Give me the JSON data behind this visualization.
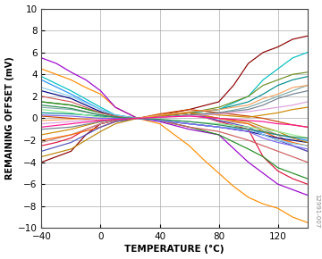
{
  "title": "",
  "xlabel": "TEMPERATURE (°C)",
  "ylabel": "REMAINING OFFSET (mV)",
  "xlim": [
    -40,
    140
  ],
  "ylim": [
    -10,
    10
  ],
  "xticks": [
    -40,
    0,
    40,
    80,
    120
  ],
  "yticks": [
    -10,
    -8,
    -6,
    -4,
    -2,
    0,
    2,
    4,
    6,
    8,
    10
  ],
  "watermark": "12991-007",
  "background_color": "#ffffff",
  "grid_color": "#aaaaaa",
  "lines": [
    {
      "color": "#FF8C00",
      "temps": [
        -40,
        -30,
        -20,
        -10,
        0,
        10,
        25,
        40,
        50,
        60,
        70,
        80,
        90,
        100,
        110,
        120,
        130,
        140
      ],
      "vals": [
        4.5,
        4.0,
        3.5,
        2.8,
        2.2,
        1.0,
        0,
        -0.5,
        -1.5,
        -2.5,
        -3.8,
        -5.0,
        -6.2,
        -7.2,
        -7.8,
        -8.2,
        -9.0,
        -9.5
      ]
    },
    {
      "color": "#8B0000",
      "temps": [
        -40,
        -30,
        -20,
        -10,
        0,
        10,
        25,
        40,
        60,
        80,
        90,
        100,
        110,
        120,
        130,
        140
      ],
      "vals": [
        -4.0,
        -3.5,
        -3.0,
        -1.5,
        -0.5,
        -0.2,
        0,
        0.3,
        0.8,
        1.5,
        3.0,
        5.0,
        6.0,
        6.5,
        7.2,
        7.5
      ]
    },
    {
      "color": "#00BFBF",
      "temps": [
        -40,
        -20,
        0,
        10,
        25,
        40,
        60,
        80,
        100,
        110,
        120,
        130,
        140
      ],
      "vals": [
        3.8,
        2.5,
        1.0,
        0.3,
        0,
        0.2,
        0.5,
        0.8,
        2.0,
        3.5,
        4.5,
        5.5,
        6.0
      ]
    },
    {
      "color": "#1E90FF",
      "temps": [
        -40,
        -20,
        0,
        10,
        25,
        40,
        60,
        80,
        100,
        110,
        120,
        130,
        140
      ],
      "vals": [
        3.5,
        2.2,
        0.8,
        0.3,
        0,
        -0.2,
        -0.5,
        -0.8,
        -1.0,
        -1.3,
        -1.5,
        -1.8,
        -2.0
      ]
    },
    {
      "color": "#9900CC",
      "temps": [
        -40,
        -30,
        -20,
        -10,
        0,
        10,
        25,
        40,
        60,
        80,
        100,
        110,
        120,
        130,
        140
      ],
      "vals": [
        5.5,
        5.0,
        4.2,
        3.5,
        2.5,
        1.0,
        0,
        -0.3,
        -1.0,
        -1.5,
        -4.0,
        -5.0,
        -6.0,
        -6.5,
        -7.0
      ]
    },
    {
      "color": "#6B8E23",
      "temps": [
        -40,
        -20,
        0,
        10,
        25,
        40,
        60,
        80,
        100,
        110,
        120,
        130,
        140
      ],
      "vals": [
        1.5,
        1.2,
        0.5,
        0.2,
        0,
        0.2,
        0.5,
        1.0,
        2.0,
        3.0,
        3.5,
        4.0,
        4.2
      ]
    },
    {
      "color": "#DC143C",
      "temps": [
        -40,
        -30,
        -20,
        -10,
        0,
        10,
        25,
        40,
        60,
        80,
        100,
        110,
        120,
        130,
        140
      ],
      "vals": [
        -2.5,
        -2.2,
        -1.8,
        -1.0,
        -0.5,
        -0.2,
        0,
        0.2,
        0.5,
        -0.3,
        -1.0,
        -3.5,
        -4.8,
        -5.5,
        -6.0
      ]
    },
    {
      "color": "#BC8F8F",
      "temps": [
        -40,
        -20,
        0,
        10,
        25,
        40,
        60,
        80,
        100,
        110,
        120,
        130,
        140
      ],
      "vals": [
        -2.2,
        -1.5,
        -0.5,
        -0.2,
        0,
        0.1,
        0.3,
        -0.2,
        -0.5,
        -1.0,
        -1.5,
        -2.5,
        -3.0
      ]
    },
    {
      "color": "#008B8B",
      "temps": [
        -40,
        -20,
        0,
        10,
        25,
        40,
        60,
        80,
        100,
        110,
        120,
        130,
        140
      ],
      "vals": [
        0.5,
        0.4,
        0.2,
        0.1,
        0,
        0.2,
        0.5,
        0.8,
        1.5,
        2.2,
        3.0,
        3.5,
        3.8
      ]
    },
    {
      "color": "#FF6600",
      "temps": [
        -40,
        -20,
        0,
        10,
        25,
        40,
        60,
        80,
        100,
        110,
        120,
        130,
        140
      ],
      "vals": [
        -2.0,
        -1.5,
        -0.8,
        -0.3,
        0,
        0.3,
        0.5,
        0.0,
        -0.5,
        -1.2,
        -1.8,
        -2.2,
        -2.5
      ]
    },
    {
      "color": "#000080",
      "temps": [
        -40,
        -20,
        0,
        10,
        25,
        40,
        60,
        80,
        100,
        110,
        120,
        130,
        140
      ],
      "vals": [
        2.5,
        1.8,
        0.6,
        0.2,
        0,
        -0.2,
        -0.5,
        -0.8,
        -1.2,
        -1.5,
        -1.8,
        -2.0,
        -2.2
      ]
    },
    {
      "color": "#7FAAAA",
      "temps": [
        -40,
        -20,
        0,
        10,
        25,
        40,
        60,
        80,
        100,
        110,
        120,
        130,
        140
      ],
      "vals": [
        1.0,
        0.8,
        0.3,
        0.1,
        0,
        0.1,
        0.3,
        0.5,
        1.0,
        1.5,
        2.0,
        2.5,
        3.0
      ]
    },
    {
      "color": "#CC4400",
      "temps": [
        -40,
        -20,
        0,
        10,
        25,
        40,
        60,
        80,
        100,
        110,
        120,
        130,
        140
      ],
      "vals": [
        0.2,
        0.0,
        -0.2,
        -0.1,
        0,
        0.4,
        0.8,
        0.5,
        0.2,
        0.0,
        -0.3,
        -0.6,
        -0.8
      ]
    },
    {
      "color": "#5050C0",
      "temps": [
        -40,
        -20,
        0,
        10,
        25,
        40,
        60,
        80,
        100,
        110,
        120,
        130,
        140
      ],
      "vals": [
        -3.0,
        -2.2,
        -0.8,
        -0.3,
        0,
        0.2,
        0.5,
        -0.2,
        -0.8,
        -1.5,
        -2.0,
        -2.5,
        -3.0
      ]
    },
    {
      "color": "#B8860B",
      "temps": [
        -40,
        -20,
        0,
        10,
        25,
        40,
        60,
        80,
        100,
        110,
        120,
        130,
        140
      ],
      "vals": [
        -3.5,
        -2.8,
        -1.2,
        -0.5,
        0,
        0.3,
        0.5,
        0.0,
        -0.3,
        -0.8,
        -1.2,
        -1.8,
        -2.2
      ]
    },
    {
      "color": "#228B22",
      "temps": [
        -40,
        -20,
        0,
        10,
        25,
        40,
        60,
        80,
        100,
        110,
        120,
        130,
        140
      ],
      "vals": [
        1.5,
        1.2,
        0.5,
        0.2,
        0,
        -0.2,
        -0.8,
        -1.5,
        -2.8,
        -3.5,
        -4.5,
        -5.0,
        -5.5
      ]
    },
    {
      "color": "#CC8800",
      "temps": [
        -40,
        -20,
        0,
        10,
        25,
        40,
        60,
        80,
        100,
        110,
        120,
        130,
        140
      ],
      "vals": [
        -1.5,
        -1.0,
        -0.3,
        -0.1,
        0,
        0.2,
        0.5,
        0.3,
        0.1,
        0.3,
        0.5,
        0.8,
        1.0
      ]
    },
    {
      "color": "#CD5C5C",
      "temps": [
        -40,
        -20,
        0,
        10,
        25,
        40,
        60,
        80,
        100,
        110,
        120,
        130,
        140
      ],
      "vals": [
        2.0,
        1.5,
        0.5,
        0.2,
        0,
        -0.2,
        -0.8,
        -1.2,
        -2.0,
        -2.5,
        -3.0,
        -3.5,
        -4.0
      ]
    },
    {
      "color": "#708090",
      "temps": [
        -40,
        -20,
        0,
        10,
        25,
        40,
        60,
        80,
        100,
        110,
        120,
        130,
        140
      ],
      "vals": [
        -1.0,
        -0.8,
        -0.3,
        -0.1,
        0,
        0.1,
        0.3,
        0.5,
        0.8,
        1.2,
        1.8,
        2.2,
        2.5
      ]
    },
    {
      "color": "#90EE90",
      "temps": [
        -40,
        -20,
        0,
        10,
        25,
        40,
        60,
        80,
        100,
        110,
        120,
        130,
        140
      ],
      "vals": [
        0.8,
        0.5,
        0.1,
        0.0,
        0,
        -0.1,
        -0.3,
        -0.5,
        -0.8,
        -1.0,
        -1.2,
        -1.5,
        -1.8
      ]
    },
    {
      "color": "#DDA0DD",
      "temps": [
        -40,
        -20,
        0,
        10,
        25,
        40,
        60,
        80,
        100,
        110,
        120,
        130,
        140
      ],
      "vals": [
        -0.5,
        -0.3,
        -0.1,
        0.0,
        0,
        0.1,
        0.2,
        0.4,
        0.6,
        0.8,
        1.0,
        1.2,
        1.5
      ]
    },
    {
      "color": "#87CEEB",
      "temps": [
        -40,
        -20,
        0,
        10,
        25,
        40,
        60,
        80,
        100,
        110,
        120,
        130,
        140
      ],
      "vals": [
        2.8,
        2.0,
        0.8,
        0.3,
        0,
        -0.2,
        -0.5,
        -0.8,
        -1.0,
        -1.5,
        -2.0,
        -2.3,
        -2.5
      ]
    },
    {
      "color": "#F4A460",
      "temps": [
        -40,
        -20,
        0,
        10,
        25,
        40,
        60,
        80,
        100,
        110,
        120,
        130,
        140
      ],
      "vals": [
        -0.2,
        -0.1,
        0.0,
        0.0,
        0,
        0.3,
        0.6,
        0.8,
        1.2,
        1.8,
        2.2,
        2.8,
        3.0
      ]
    },
    {
      "color": "#7B68EE",
      "temps": [
        -40,
        -20,
        0,
        10,
        25,
        40,
        60,
        80,
        100,
        110,
        120,
        130,
        140
      ],
      "vals": [
        0.3,
        0.2,
        0.0,
        0.0,
        0,
        -0.2,
        -0.5,
        -0.8,
        -1.2,
        -1.8,
        -2.2,
        -2.5,
        -2.8
      ]
    },
    {
      "color": "#2E8B57",
      "temps": [
        -40,
        -20,
        0,
        10,
        25,
        40,
        60,
        80,
        100,
        110,
        120,
        130,
        140
      ],
      "vals": [
        1.2,
        0.9,
        0.3,
        0.1,
        0,
        -0.1,
        -0.3,
        -0.6,
        -1.0,
        -1.2,
        -1.5,
        -1.7,
        -1.8
      ]
    },
    {
      "color": "#FF1493",
      "temps": [
        -40,
        -20,
        0,
        10,
        25,
        40,
        60,
        80,
        100,
        110,
        120,
        130,
        140
      ],
      "vals": [
        -0.8,
        -0.5,
        -0.2,
        -0.1,
        0,
        0.1,
        0.2,
        0.0,
        -0.2,
        -0.3,
        -0.5,
        -0.6,
        -0.8
      ]
    }
  ]
}
